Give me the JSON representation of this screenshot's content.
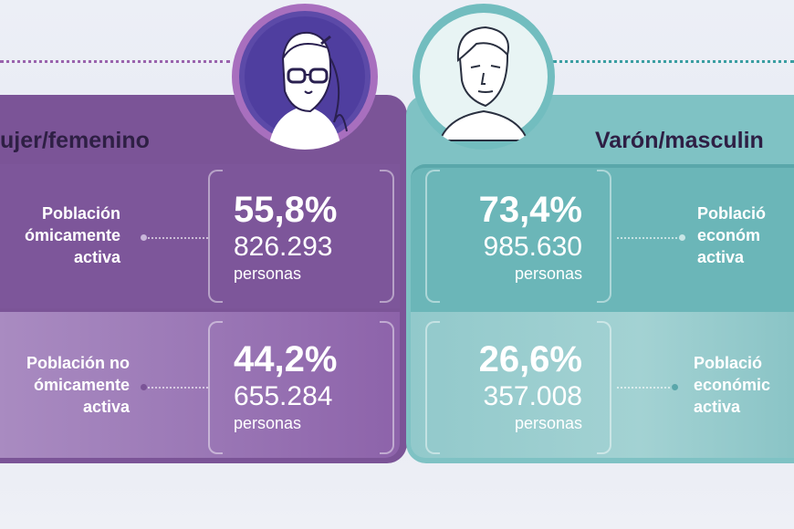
{
  "female": {
    "title": "ujer/femenino",
    "active_label_l1": "Población",
    "active_label_l2": "ómicamente",
    "active_label_l3": "activa",
    "active_percent": "55,8%",
    "active_count": "826.293",
    "active_unit": "personas",
    "inactive_label_l1": "Población no",
    "inactive_label_l2": "ómicamente",
    "inactive_label_l3": "activa",
    "inactive_percent": "44,2%",
    "inactive_count": "655.284",
    "inactive_unit": "personas"
  },
  "male": {
    "title": "Varón/masculin",
    "active_label_l1": "Població",
    "active_label_l2": "económ",
    "active_label_l3": "activa",
    "active_percent": "73,4%",
    "active_count": "985.630",
    "active_unit": "personas",
    "inactive_label_l1": "Població",
    "inactive_label_l2": "económic",
    "inactive_label_l3": "activa",
    "inactive_percent": "26,6%",
    "inactive_count": "357.008",
    "inactive_unit": "personas"
  },
  "colors": {
    "female_accent": "#7b5497",
    "male_accent": "#7fc2c4",
    "title_text": "#2e1f44"
  }
}
